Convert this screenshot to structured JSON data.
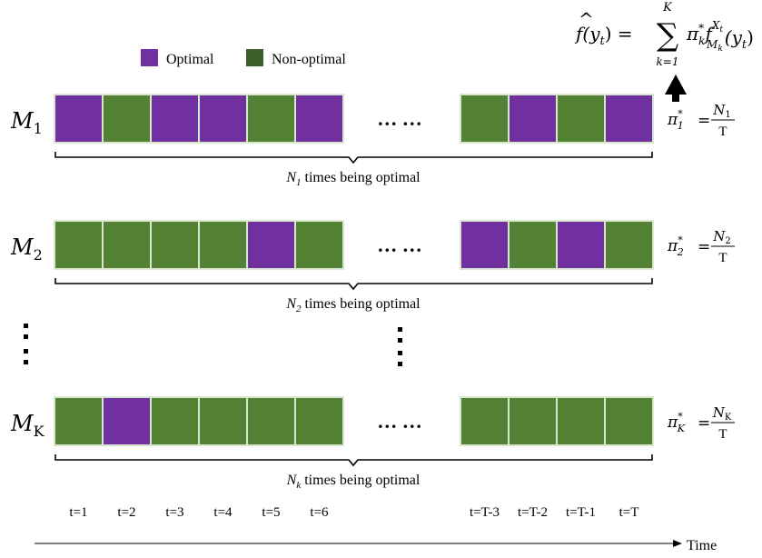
{
  "legend": {
    "items": [
      {
        "label": "Optimal",
        "color": "#7030a0",
        "key": "optimal"
      },
      {
        "label": "Non-optimal",
        "color": "#3d5e28",
        "key": "nonoptimal"
      }
    ]
  },
  "colors": {
    "optimal": "#7030a0",
    "nonoptimal": "#548235",
    "cell_border": "#d9e6cf"
  },
  "formula": {
    "lhs": "f(y",
    "lhs_sub": "t",
    "lhs_close": ") =",
    "sum_top": "K",
    "sum_bottom": "k=1",
    "rhs_pi": "π",
    "rhs_pi_sup": "*",
    "rhs_pi_sub": "k",
    "rhs_f": "f",
    "rhs_f_sup": "X",
    "rhs_f_sup_sub": "t",
    "rhs_f_sub": "M",
    "rhs_f_sub_sub": "k",
    "rhs_arg": "(y",
    "rhs_arg_sub": "t",
    "rhs_arg_close": ")"
  },
  "ellipsis": "… …",
  "rows": [
    {
      "label": "M",
      "label_sub": "1",
      "cells_left": [
        "o",
        "n",
        "o",
        "o",
        "n",
        "o"
      ],
      "cells_right": [
        "n",
        "o",
        "n",
        "o"
      ],
      "brace_var": "N",
      "brace_var_sub": "1",
      "brace_text": " times being optimal",
      "pi": "π",
      "pi_sub": "1",
      "num": "N",
      "num_sub": "1",
      "den": "T"
    },
    {
      "label": "M",
      "label_sub": "2",
      "cells_left": [
        "n",
        "n",
        "n",
        "n",
        "o",
        "n"
      ],
      "cells_right": [
        "o",
        "n",
        "o",
        "n"
      ],
      "brace_var": "N",
      "brace_var_sub": "2",
      "brace_text": " times being optimal",
      "pi": "π",
      "pi_sub": "2",
      "num": "N",
      "num_sub": "2",
      "den": "T"
    },
    {
      "label": "M",
      "label_sub": "K",
      "cells_left": [
        "n",
        "o",
        "n",
        "n",
        "n",
        "n"
      ],
      "cells_right": [
        "n",
        "n",
        "n",
        "n"
      ],
      "brace_var": "N",
      "brace_var_sub": "k",
      "brace_text": " times being optimal",
      "pi": "π",
      "pi_sub": "K",
      "num": "N",
      "num_sub": "K",
      "den": "T"
    }
  ],
  "time_labels_left": [
    "t=1",
    "t=2",
    "t=3",
    "t=4",
    "t=5",
    "t=6"
  ],
  "time_labels_right": [
    "t=T-3",
    "t=T-2",
    "t=T-1",
    "t=T"
  ],
  "axis_label": "Time"
}
